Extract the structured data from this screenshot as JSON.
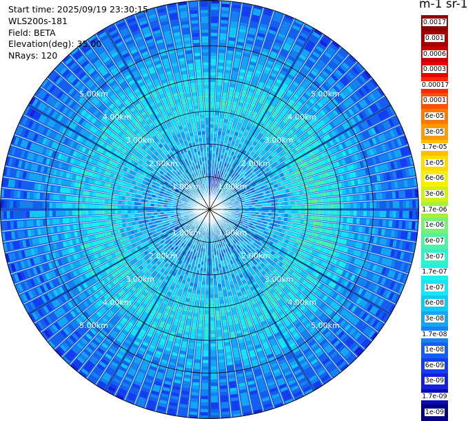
{
  "meta": {
    "start_time": "Start time: 2025/09/19 23:30:15",
    "instrument": "WLS200s-181",
    "field": "Field: BETA",
    "elevation": "Elevation(deg): 35.00",
    "nrays": "NRays: 120"
  },
  "colorbar": {
    "units_label": "m-1 sr-1",
    "ticks": [
      "0.0017",
      "0.001",
      "0.0006",
      "0.0003",
      "0.00017",
      "0.0001",
      "6e-05",
      "3e-05",
      "1.7e-05",
      "1e-05",
      "6e-06",
      "3e-06",
      "1.7e-06",
      "1e-06",
      "6e-07",
      "3e-07",
      "1.7e-07",
      "1e-07",
      "6e-08",
      "3e-08",
      "1.7e-08",
      "1e-08",
      "6e-09",
      "3e-09",
      "1.7e-09",
      "1e-09"
    ],
    "colors": [
      "#8b0000",
      "#a50000",
      "#c80000",
      "#e60000",
      "#ff2800",
      "#ff5000",
      "#ff7800",
      "#ff9b00",
      "#ffbe00",
      "#ffdc00",
      "#f5f000",
      "#d2f014",
      "#a6f03c",
      "#78f078",
      "#50f0a5",
      "#32f0c8",
      "#1ef0e6",
      "#14e6f5",
      "#14c8f5",
      "#14a6f5",
      "#1482f0",
      "#145ff0",
      "#143cf0",
      "#1420dc",
      "#0a0ab4",
      "#000080"
    ]
  },
  "chart_data": {
    "type": "polar-ppi",
    "field": "BETA",
    "units": "m-1 sr-1",
    "elevation_deg": 35.0,
    "nrays": 120,
    "range_rings_km": [
      1,
      2,
      3,
      4,
      5
    ],
    "ring_labels": [
      "1.00km",
      "2.00km",
      "3.00km",
      "4.00km",
      "5.00km"
    ],
    "label_bearings_deg": [
      45,
      135,
      225,
      315
    ],
    "max_range_km": 6.4,
    "color_scale": "log",
    "value_range": [
      1e-09,
      0.0017
    ],
    "description_profile": [
      {
        "range_km": 0.5,
        "value": 3e-08
      },
      {
        "range_km": 1.5,
        "value": 3e-08
      },
      {
        "range_km": 2.5,
        "value": 6e-08
      },
      {
        "range_km": 3.2,
        "value": 1.7e-07
      },
      {
        "range_km": 4.0,
        "value": 1e-07
      },
      {
        "range_km": 4.8,
        "value": 3e-08
      },
      {
        "range_km": 5.6,
        "value": 1.7e-08
      },
      {
        "range_km": 6.3,
        "value": 1e-08
      }
    ],
    "grid": true
  }
}
